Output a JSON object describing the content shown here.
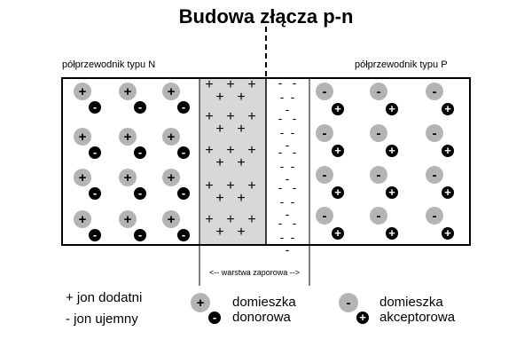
{
  "title": "Budowa złącza p-n",
  "labels": {
    "n_type": "półprzewodnik typu N",
    "p_type": "półprzewodnik typu  P",
    "barrier": "<-- warstwa zaporowa -->"
  },
  "symbols": {
    "plus": "+",
    "minus": "-"
  },
  "legend": {
    "positive_ion": "+ jon dodatni",
    "negative_ion": "- jon ujemny",
    "donor_line1": "domieszka",
    "donor_line2": "donorowa",
    "acceptor_line1": "domieszka",
    "acceptor_line2": "akceptorowa"
  },
  "colors": {
    "atom_gray": "#b4b4b4",
    "depletion_gray": "#d8d8d8",
    "outline": "#000000"
  }
}
